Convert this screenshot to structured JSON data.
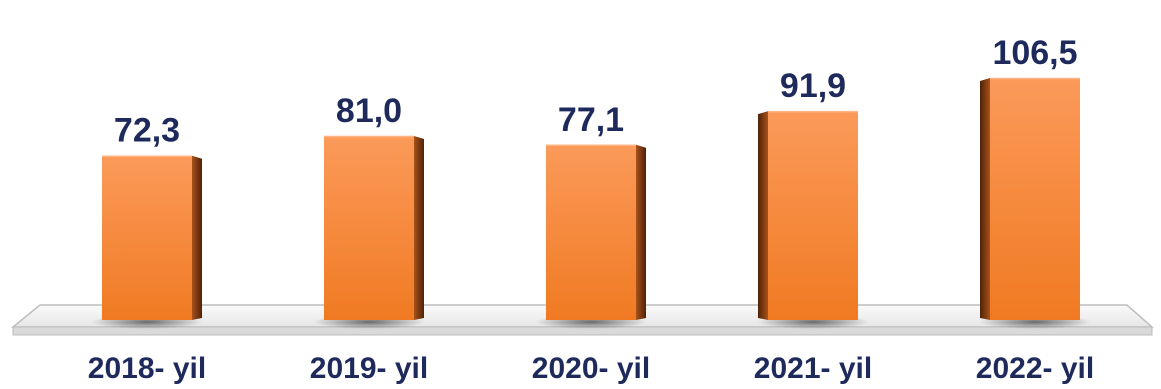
{
  "chart_data": {
    "type": "bar",
    "title": "",
    "xlabel": "",
    "ylabel": "",
    "categories": [
      "2018- yil",
      "2019- yil",
      "2020- yil",
      "2021- yil",
      "2022- yil"
    ],
    "values": [
      72.3,
      81.0,
      77.1,
      91.9,
      106.5
    ],
    "value_labels": [
      "72,3",
      "81,0",
      "77,1",
      "91,9",
      "106,5"
    ],
    "ylim": [
      0,
      110
    ],
    "grid": false,
    "legend": "none",
    "three_d": true,
    "colors": {
      "bar_front_top": "#fb9a5a",
      "bar_front_bottom": "#f07a22",
      "bar_side_light": "#a9521a",
      "bar_side_dark": "#4e2208",
      "floor_fill": "#f4f4f4",
      "floor_stroke": "#bdbdbd",
      "label_text": "#1f2a5c"
    }
  }
}
